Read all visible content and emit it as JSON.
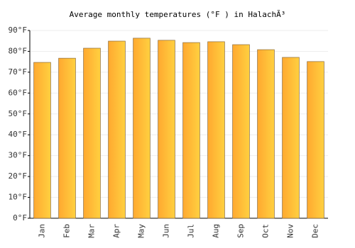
{
  "chart_data": {
    "type": "bar",
    "title": "Average monthly temperatures (°F ) in HalachÃ³",
    "categories": [
      "Jan",
      "Feb",
      "Mar",
      "Apr",
      "May",
      "Jun",
      "Jul",
      "Aug",
      "Sep",
      "Oct",
      "Nov",
      "Dec"
    ],
    "values": [
      74.7,
      76.7,
      81.5,
      84.9,
      86.3,
      85.3,
      84.2,
      84.6,
      83.2,
      80.8,
      77.1,
      75.1
    ],
    "color": "#ffa930",
    "ylim": [
      0,
      90
    ],
    "yticks": [
      {
        "value": 0,
        "label": "0°F"
      },
      {
        "value": 10,
        "label": "10°F"
      },
      {
        "value": 20,
        "label": "20°F"
      },
      {
        "value": 30,
        "label": "30°F"
      },
      {
        "value": 40,
        "label": "40°F"
      },
      {
        "value": 50,
        "label": "50°F"
      },
      {
        "value": 60,
        "label": "60°F"
      },
      {
        "value": 70,
        "label": "70°F"
      },
      {
        "value": 80,
        "label": "80°F"
      },
      {
        "value": 90,
        "label": "90°F"
      }
    ],
    "grid": true
  }
}
